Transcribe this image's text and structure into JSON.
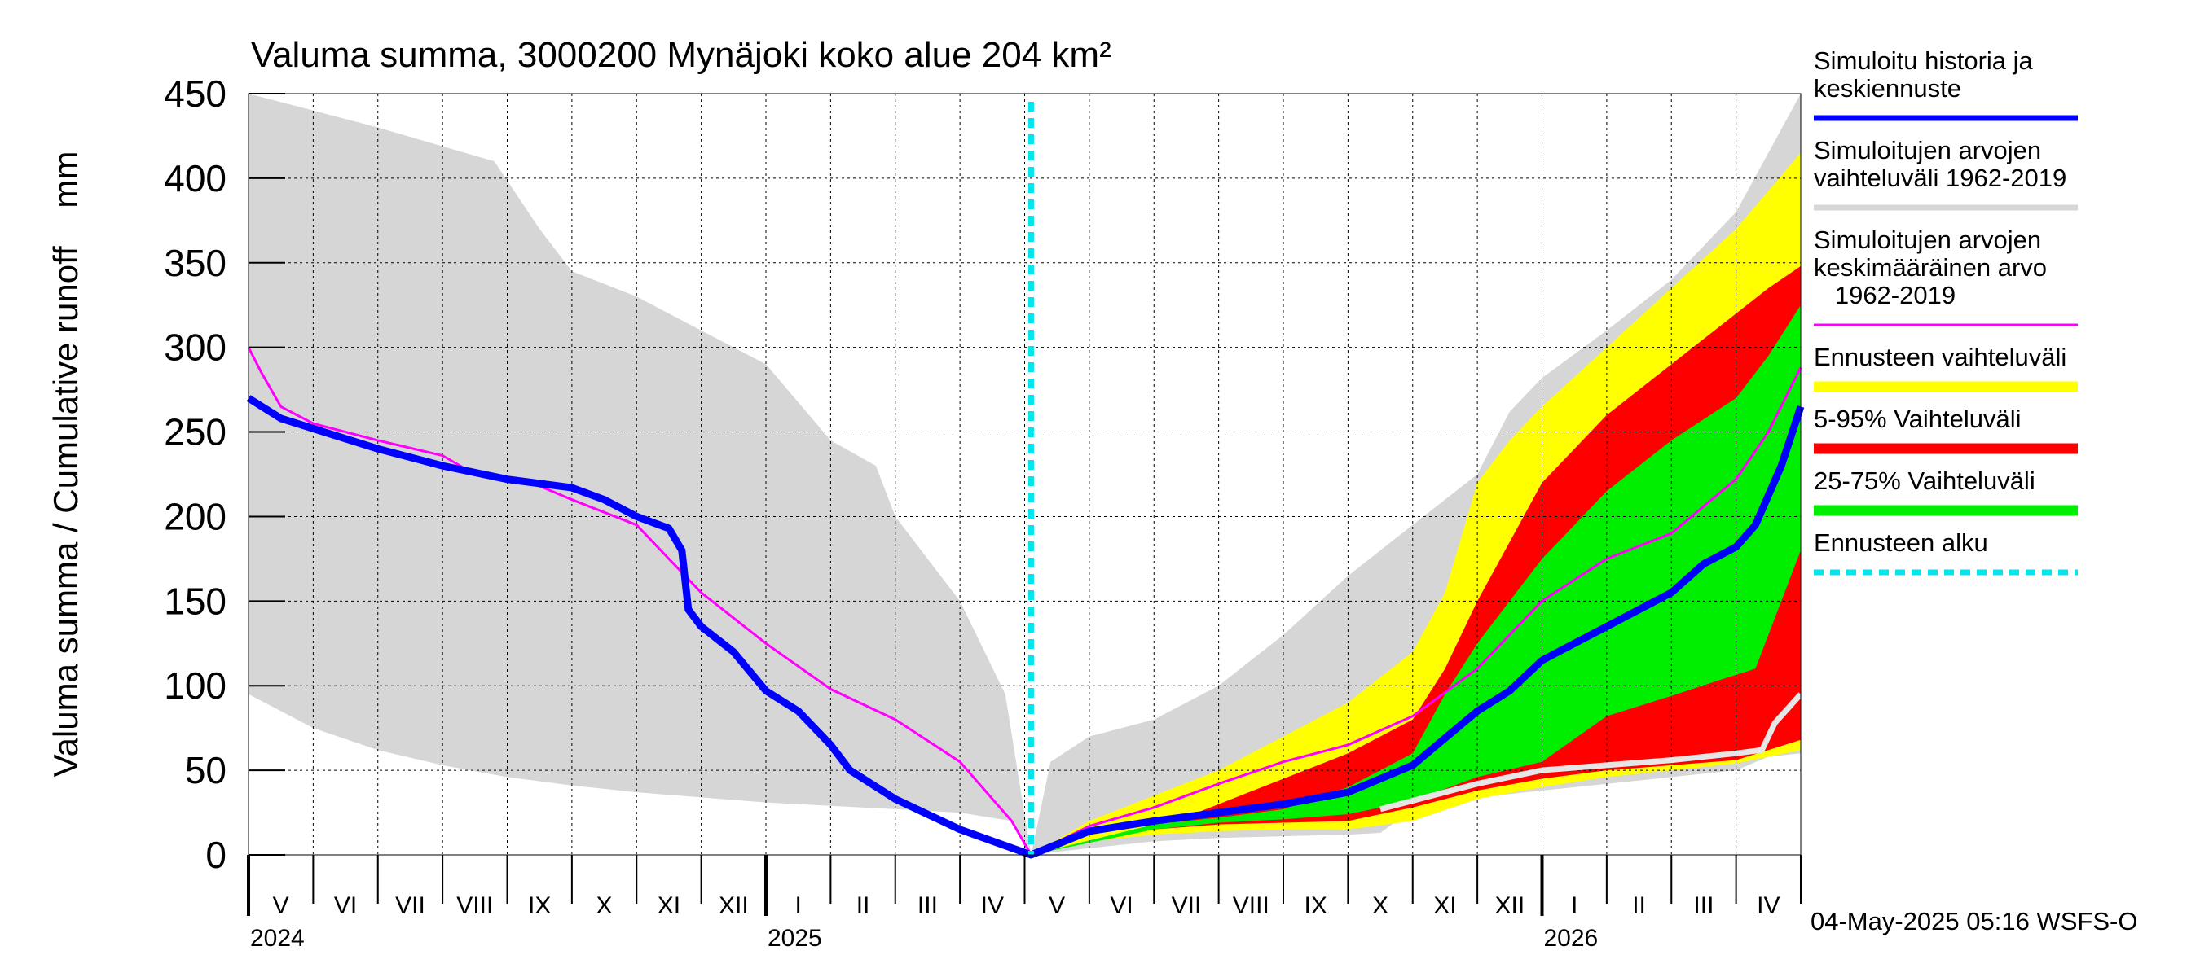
{
  "chart_data": {
    "type": "area",
    "title": "Valuma summa, 3000200 Mynäjoki koko alue 204 km²",
    "ylabel": "Valuma summa / Cumulative runoff    mm",
    "ylim": [
      0,
      450
    ],
    "yticks": [
      "0",
      "50",
      "100",
      "150",
      "200",
      "250",
      "300",
      "350",
      "400",
      "450"
    ],
    "xrange_months": [
      0,
      24
    ],
    "forecast_start_month": 12.1,
    "month_labels": [
      "V",
      "VI",
      "VII",
      "VIII",
      "IX",
      "X",
      "XI",
      "XII",
      "I",
      "II",
      "III",
      "IV",
      "V",
      "VI",
      "VII",
      "VIII",
      "IX",
      "X",
      "XI",
      "XII",
      "I",
      "II",
      "III",
      "IV"
    ],
    "year_labels": [
      {
        "label": "2024",
        "month": 0
      },
      {
        "label": "2025",
        "month": 8
      },
      {
        "label": "2026",
        "month": 20
      }
    ],
    "timestamp": "04-May-2025 05:16 WSFS-O",
    "colors": {
      "history_range": "#d6d6d6",
      "forecast_range": "#ffff00",
      "p5_95": "#ff0000",
      "p25_75": "#00ee00",
      "history_forecast": "#0000ff",
      "mean": "#ff00ff",
      "forecast_start": "#00e5ee",
      "lowest": "#e6e6e6"
    },
    "legend": [
      {
        "label": "Simuloitu historia ja keskiennuste",
        "lines": [
          "Simuloitu historia ja",
          "keskiennuste"
        ],
        "color": "#0000ff",
        "style": "thick"
      },
      {
        "label": "Simuloitujen arvojen vaihteluväli 1962-2019",
        "lines": [
          "Simuloitujen arvojen",
          "vaihteluväli 1962-2019"
        ],
        "color": "#d6d6d6",
        "style": "thick"
      },
      {
        "label": "Simuloitujen arvojen keskimääräinen arvo 1962-2019",
        "lines": [
          "Simuloitujen arvojen",
          "keskimääräinen arvo",
          "   1962-2019"
        ],
        "color": "#ff00ff",
        "style": "thin"
      },
      {
        "label": "Ennusteen vaihteluväli",
        "lines": [
          "Ennusteen vaihteluväli"
        ],
        "color": "#ffff00",
        "style": "band"
      },
      {
        "label": "5-95% Vaihteluväli",
        "lines": [
          "5-95% Vaihteluväli"
        ],
        "color": "#ff0000",
        "style": "band"
      },
      {
        "label": "25-75% Vaihteluväli",
        "lines": [
          "25-75% Vaihteluväli"
        ],
        "color": "#00ee00",
        "style": "band"
      },
      {
        "label": "Ennusteen alku",
        "lines": [
          "Ennusteen alku"
        ],
        "color": "#00e5ee",
        "style": "dashed"
      }
    ],
    "series": [
      {
        "name": "history_max",
        "points": [
          [
            0,
            450
          ],
          [
            2,
            430
          ],
          [
            3.8,
            410
          ],
          [
            4.5,
            370
          ],
          [
            5,
            345
          ],
          [
            6,
            330
          ],
          [
            7,
            310
          ],
          [
            8,
            290
          ],
          [
            9,
            245
          ],
          [
            9.7,
            230
          ],
          [
            10,
            200
          ],
          [
            10.5,
            175
          ],
          [
            11,
            150
          ],
          [
            11.7,
            95
          ],
          [
            12.1,
            0
          ],
          [
            12.4,
            55
          ],
          [
            13,
            70
          ],
          [
            14,
            80
          ],
          [
            15,
            100
          ],
          [
            16,
            130
          ],
          [
            17,
            165
          ],
          [
            18,
            195
          ],
          [
            19,
            225
          ],
          [
            19.5,
            262
          ],
          [
            20,
            282
          ],
          [
            21,
            310
          ],
          [
            22,
            340
          ],
          [
            23,
            380
          ],
          [
            24,
            450
          ]
        ]
      },
      {
        "name": "history_min",
        "points": [
          [
            0,
            95
          ],
          [
            1,
            75
          ],
          [
            2,
            62
          ],
          [
            3,
            53
          ],
          [
            4,
            46
          ],
          [
            5,
            41
          ],
          [
            6,
            37
          ],
          [
            7,
            34
          ],
          [
            8,
            31
          ],
          [
            9,
            29
          ],
          [
            10,
            27
          ],
          [
            11,
            25
          ],
          [
            11.8,
            20
          ],
          [
            12.1,
            0
          ],
          [
            13,
            4
          ],
          [
            14,
            8
          ],
          [
            15,
            10
          ],
          [
            16,
            11
          ],
          [
            17,
            12
          ],
          [
            17.5,
            13
          ],
          [
            18,
            27
          ],
          [
            19,
            34
          ],
          [
            20,
            38
          ],
          [
            21,
            42
          ],
          [
            22,
            46
          ],
          [
            23,
            50
          ],
          [
            23.5,
            58
          ],
          [
            24,
            60
          ]
        ]
      },
      {
        "name": "forecast_max",
        "points": [
          [
            12.1,
            0
          ],
          [
            13,
            20
          ],
          [
            14,
            35
          ],
          [
            15,
            50
          ],
          [
            16,
            70
          ],
          [
            17,
            90
          ],
          [
            18,
            120
          ],
          [
            18.5,
            155
          ],
          [
            19,
            220
          ],
          [
            19.5,
            245
          ],
          [
            20,
            265
          ],
          [
            21,
            300
          ],
          [
            22,
            335
          ],
          [
            23,
            370
          ],
          [
            24,
            415
          ]
        ]
      },
      {
        "name": "forecast_min",
        "points": [
          [
            12.1,
            0
          ],
          [
            13,
            8
          ],
          [
            14,
            12
          ],
          [
            15,
            14
          ],
          [
            16,
            15
          ],
          [
            17,
            15
          ],
          [
            18,
            20
          ],
          [
            19,
            33
          ],
          [
            20,
            40
          ],
          [
            21,
            46
          ],
          [
            22,
            50
          ],
          [
            23,
            54
          ],
          [
            23.5,
            58
          ],
          [
            24,
            62
          ]
        ]
      },
      {
        "name": "p95",
        "points": [
          [
            12.1,
            0
          ],
          [
            14,
            15
          ],
          [
            15,
            30
          ],
          [
            16,
            45
          ],
          [
            17,
            60
          ],
          [
            18,
            80
          ],
          [
            18.5,
            110
          ],
          [
            19,
            150
          ],
          [
            19.5,
            185
          ],
          [
            20,
            220
          ],
          [
            21,
            260
          ],
          [
            22,
            290
          ],
          [
            23,
            320
          ],
          [
            23.5,
            335
          ],
          [
            24,
            348
          ]
        ]
      },
      {
        "name": "p5",
        "points": [
          [
            12.1,
            0
          ],
          [
            14,
            15
          ],
          [
            15,
            18
          ],
          [
            16,
            19
          ],
          [
            17,
            20
          ],
          [
            18,
            28
          ],
          [
            19,
            38
          ],
          [
            20,
            45
          ],
          [
            21,
            50
          ],
          [
            22,
            53
          ],
          [
            23,
            56
          ],
          [
            23.5,
            62
          ],
          [
            24,
            68
          ]
        ]
      },
      {
        "name": "p75",
        "points": [
          [
            12.1,
            0
          ],
          [
            14,
            18
          ],
          [
            15,
            22
          ],
          [
            16,
            27
          ],
          [
            17,
            40
          ],
          [
            18,
            60
          ],
          [
            18.5,
            95
          ],
          [
            19,
            125
          ],
          [
            19.5,
            150
          ],
          [
            20,
            175
          ],
          [
            21,
            215
          ],
          [
            22,
            245
          ],
          [
            23,
            270
          ],
          [
            23.5,
            295
          ],
          [
            24,
            325
          ]
        ]
      },
      {
        "name": "p25",
        "points": [
          [
            12.1,
            0
          ],
          [
            14,
            15
          ],
          [
            15,
            19
          ],
          [
            16,
            21
          ],
          [
            17,
            24
          ],
          [
            18,
            32
          ],
          [
            19,
            46
          ],
          [
            20,
            55
          ],
          [
            21,
            82
          ],
          [
            22,
            94
          ],
          [
            22.8,
            104
          ],
          [
            23.3,
            110
          ],
          [
            23.7,
            150
          ],
          [
            24,
            180
          ]
        ]
      },
      {
        "name": "lowest_forecast",
        "points": [
          [
            17.5,
            27
          ],
          [
            18,
            32
          ],
          [
            19,
            42
          ],
          [
            20,
            50
          ],
          [
            21,
            53
          ],
          [
            22,
            56
          ],
          [
            23,
            60
          ],
          [
            23.4,
            62
          ],
          [
            23.6,
            78
          ],
          [
            24,
            95
          ]
        ]
      },
      {
        "name": "mean",
        "points": [
          [
            0,
            300
          ],
          [
            0.2,
            285
          ],
          [
            0.5,
            265
          ],
          [
            1,
            255
          ],
          [
            2,
            245
          ],
          [
            3,
            236
          ],
          [
            3.5,
            225
          ],
          [
            4.5,
            218
          ],
          [
            5,
            210
          ],
          [
            6,
            195
          ],
          [
            6.5,
            175
          ],
          [
            7,
            155
          ],
          [
            7.5,
            140
          ],
          [
            8,
            125
          ],
          [
            9,
            98
          ],
          [
            10,
            80
          ],
          [
            11,
            55
          ],
          [
            11.8,
            20
          ],
          [
            12.1,
            0
          ],
          [
            13,
            17
          ],
          [
            14,
            28
          ],
          [
            15,
            42
          ],
          [
            16,
            55
          ],
          [
            17,
            65
          ],
          [
            18,
            82
          ],
          [
            19,
            110
          ],
          [
            20,
            150
          ],
          [
            21,
            175
          ],
          [
            22,
            190
          ],
          [
            23,
            222
          ],
          [
            23.5,
            250
          ],
          [
            24,
            288
          ]
        ]
      },
      {
        "name": "history_forecast",
        "points": [
          [
            0,
            270
          ],
          [
            0.5,
            258
          ],
          [
            1,
            252
          ],
          [
            2,
            240
          ],
          [
            3,
            230
          ],
          [
            4,
            222
          ],
          [
            5,
            217
          ],
          [
            5.5,
            210
          ],
          [
            6,
            200
          ],
          [
            6.5,
            193
          ],
          [
            6.7,
            180
          ],
          [
            6.8,
            145
          ],
          [
            7,
            135
          ],
          [
            7.5,
            120
          ],
          [
            8,
            97
          ],
          [
            8.5,
            85
          ],
          [
            9,
            65
          ],
          [
            9.3,
            50
          ],
          [
            10,
            33
          ],
          [
            11,
            15
          ],
          [
            12.1,
            0
          ],
          [
            13,
            14
          ],
          [
            14,
            20
          ],
          [
            15,
            25
          ],
          [
            16,
            30
          ],
          [
            17,
            37
          ],
          [
            18,
            53
          ],
          [
            19,
            85
          ],
          [
            19.5,
            97
          ],
          [
            20,
            115
          ],
          [
            21,
            135
          ],
          [
            22,
            155
          ],
          [
            22.5,
            172
          ],
          [
            23,
            182
          ],
          [
            23.3,
            195
          ],
          [
            23.7,
            230
          ],
          [
            24,
            265
          ]
        ]
      }
    ]
  }
}
